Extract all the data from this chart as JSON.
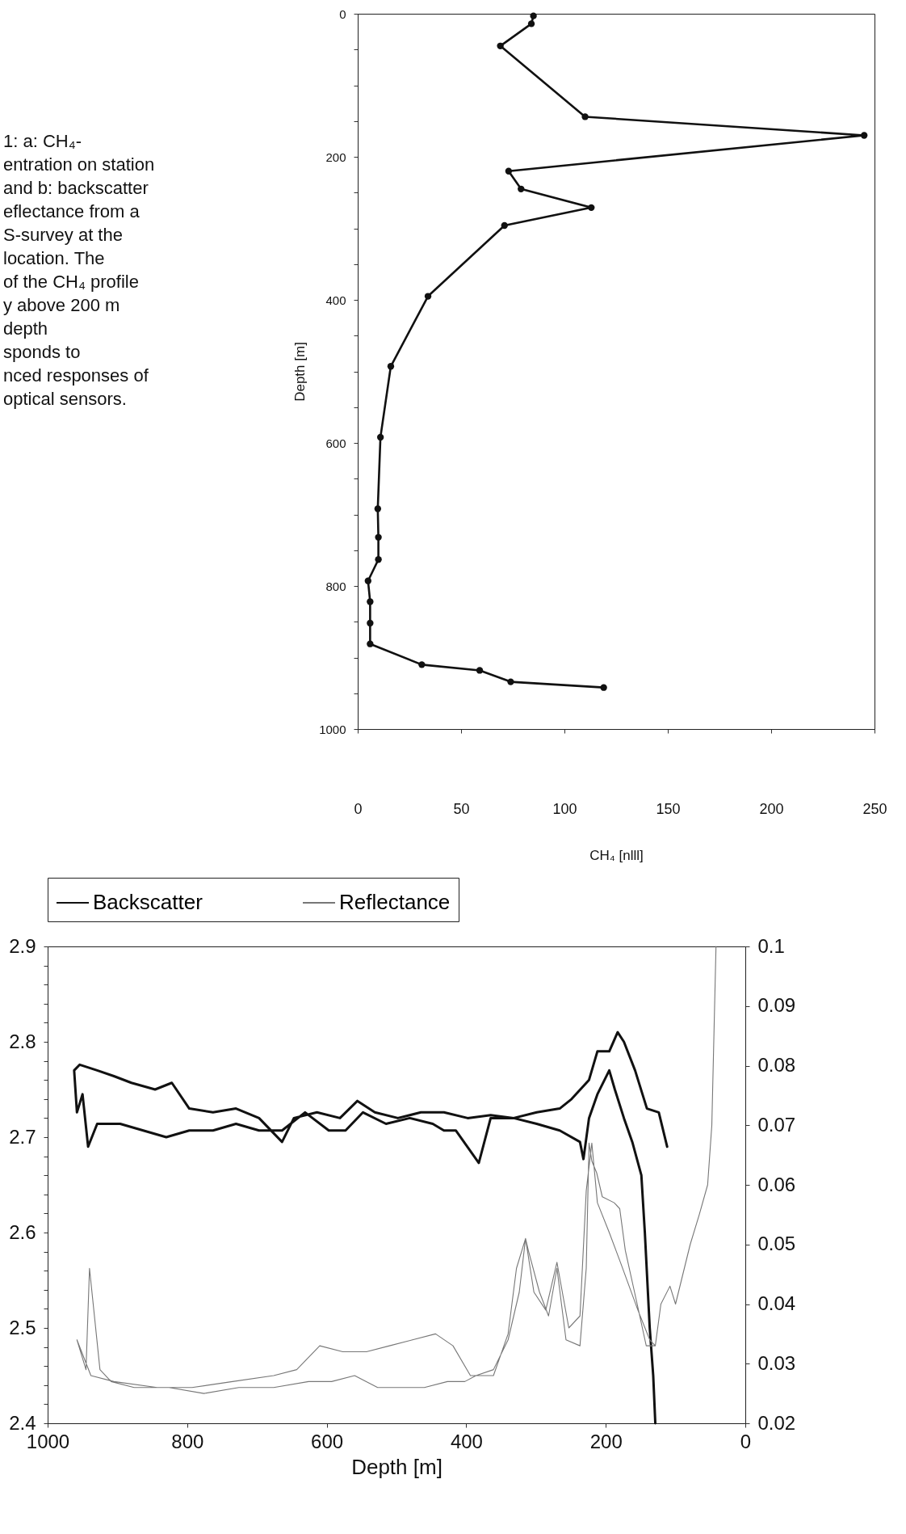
{
  "chart_data": [
    {
      "type": "line",
      "xlabel": "CH₄ [nlll]",
      "ylabel": "Depth [m]",
      "annotations": [
        "1: a: CH₄-",
        "entration on station",
        "and b: backscatter",
        "eflectance from a",
        "S-survey at the",
        "location. The",
        "of the CH₄ profile",
        "y above 200 m",
        "depth",
        "sponds to",
        "nced responses of",
        "optical sensors."
      ],
      "series": [
        {
          "color": "#111111",
          "x": [
            85,
            84,
            69,
            110,
            245,
            73,
            79,
            113,
            71,
            34,
            16,
            11,
            9.7,
            10,
            10,
            5,
            6,
            6,
            6,
            31,
            59,
            74,
            119
          ],
          "values": [
            3,
            14,
            45,
            144,
            170,
            220,
            245,
            271,
            296,
            395,
            493,
            592,
            692,
            732,
            763,
            793,
            822,
            852,
            881,
            910,
            918,
            934,
            942
          ]
        }
      ],
      "xlim": [
        0,
        250
      ],
      "xticks": [
        0,
        50,
        100,
        150,
        200,
        250
      ],
      "ylim": [
        1000,
        0
      ],
      "yticks": [
        0,
        {
          "value": 50,
          "label": null
        },
        {
          "value": 100,
          "label": null
        },
        {
          "value": 150,
          "label": null
        },
        200,
        {
          "value": 250,
          "label": null
        },
        {
          "value": 300,
          "label": null
        },
        {
          "value": 350,
          "label": null
        },
        400,
        {
          "value": 450,
          "label": null
        },
        {
          "value": 500,
          "label": null
        },
        {
          "value": 550,
          "label": null
        },
        600,
        {
          "value": 650,
          "label": null
        },
        {
          "value": 700,
          "label": null
        },
        {
          "value": 750,
          "label": null
        },
        800,
        {
          "value": 850,
          "label": null
        },
        {
          "value": 900,
          "label": null
        },
        {
          "value": 950,
          "label": null
        },
        1000
      ],
      "marker": "circle",
      "line_style": "solid",
      "grid": false,
      "legend": false
    },
    {
      "type": "line",
      "xlabel": "Depth [m]",
      "series": [
        {
          "name": "Backscatter",
          "color": "#111111",
          "x": [
            112,
            124,
            141,
            158,
            174,
            183,
            195,
            212,
            224,
            249,
            266,
            299,
            332,
            365,
            398,
            432,
            465,
            498,
            531,
            556,
            581,
            614,
            647,
            664,
            697,
            730,
            763,
            797,
            822,
            846,
            880,
            905,
            929,
            954,
            962,
            958,
            950,
            942,
            929,
            896,
            863,
            830,
            797,
            763,
            730,
            697,
            664,
            631,
            597,
            573,
            548,
            515,
            481,
            448,
            432,
            415,
            382,
            365,
            332,
            299,
            266,
            237,
            232,
            224,
            212,
            195,
            187,
            174,
            162,
            149,
            144,
            137,
            132,
            129
          ],
          "values": [
            2.69,
            2.726,
            2.73,
            2.77,
            2.8,
            2.81,
            2.79,
            2.79,
            2.76,
            2.74,
            2.73,
            2.726,
            2.72,
            2.723,
            2.72,
            2.726,
            2.726,
            2.72,
            2.726,
            2.738,
            2.72,
            2.726,
            2.72,
            2.695,
            2.72,
            2.73,
            2.726,
            2.73,
            2.757,
            2.75,
            2.757,
            2.764,
            2.77,
            2.776,
            2.77,
            2.726,
            2.745,
            2.69,
            2.714,
            2.714,
            2.707,
            2.7,
            2.707,
            2.707,
            2.714,
            2.707,
            2.707,
            2.726,
            2.707,
            2.707,
            2.726,
            2.714,
            2.72,
            2.714,
            2.707,
            2.707,
            2.673,
            2.72,
            2.72,
            2.714,
            2.707,
            2.695,
            2.677,
            2.72,
            2.745,
            2.77,
            2.75,
            2.72,
            2.695,
            2.66,
            2.6,
            2.5,
            2.45,
            2.4
          ]
        },
        {
          "name": "Reflectance",
          "color": "#777777",
          "axis": "y2",
          "x": [
            42,
            48,
            54,
            66,
            79,
            100,
            108,
            121,
            129,
            142,
            155,
            172,
            180,
            188,
            205,
            213,
            220,
            224,
            228,
            237,
            257,
            270,
            282,
            295,
            311,
            315,
            324,
            340,
            361,
            386,
            402,
            427,
            460,
            494,
            527,
            560,
            593,
            626,
            676,
            726,
            776,
            826,
            876,
            909,
            925,
            940,
            945,
            958,
            938,
            905,
            843,
            793,
            735,
            676,
            643,
            610,
            577,
            543,
            510,
            477,
            444,
            419,
            394,
            361,
            340,
            328,
            315,
            303,
            286,
            270,
            253,
            237,
            228,
            220,
            212,
            195,
            179,
            154,
            137,
            129
          ],
          "values": [
            0.1,
            0.07,
            0.06,
            0.055,
            0.05,
            0.04,
            0.043,
            0.04,
            0.033,
            0.033,
            0.04,
            0.049,
            0.056,
            0.057,
            0.058,
            0.062,
            0.064,
            0.067,
            0.046,
            0.033,
            0.034,
            0.046,
            0.038,
            0.042,
            0.049,
            0.051,
            0.042,
            0.034,
            0.029,
            0.028,
            0.027,
            0.027,
            0.026,
            0.026,
            0.026,
            0.028,
            0.027,
            0.027,
            0.026,
            0.026,
            0.025,
            0.026,
            0.026,
            0.027,
            0.029,
            0.046,
            0.029,
            0.034,
            0.028,
            0.027,
            0.026,
            0.026,
            0.027,
            0.028,
            0.029,
            0.033,
            0.032,
            0.032,
            0.033,
            0.034,
            0.035,
            0.033,
            0.028,
            0.028,
            0.035,
            0.046,
            0.051,
            0.042,
            0.039,
            0.047,
            0.036,
            0.038,
            0.059,
            0.067,
            0.057,
            0.052,
            0.047,
            0.039,
            0.034,
            0.033
          ]
        }
      ],
      "xlim": [
        1000,
        0
      ],
      "xticks": [
        1000,
        800,
        600,
        400,
        200,
        0
      ],
      "ylim": [
        2.4,
        2.9
      ],
      "yticks": [
        2.4,
        {
          "value": 2.42,
          "label": null
        },
        {
          "value": 2.44,
          "label": null
        },
        {
          "value": 2.46,
          "label": null
        },
        {
          "value": 2.48,
          "label": null
        },
        2.5,
        {
          "value": 2.52,
          "label": null
        },
        {
          "value": 2.54,
          "label": null
        },
        {
          "value": 2.56,
          "label": null
        },
        {
          "value": 2.58,
          "label": null
        },
        2.6,
        {
          "value": 2.62,
          "label": null
        },
        {
          "value": 2.64,
          "label": null
        },
        {
          "value": 2.66,
          "label": null
        },
        {
          "value": 2.68,
          "label": null
        },
        2.7,
        {
          "value": 2.72,
          "label": null
        },
        {
          "value": 2.74,
          "label": null
        },
        {
          "value": 2.76,
          "label": null
        },
        {
          "value": 2.78,
          "label": null
        },
        2.8,
        {
          "value": 2.82,
          "label": null
        },
        {
          "value": 2.84,
          "label": null
        },
        {
          "value": 2.86,
          "label": null
        },
        {
          "value": 2.88,
          "label": null
        },
        2.9
      ],
      "y2lim": [
        0.02,
        0.1
      ],
      "y2ticks": [
        0.02,
        0.03,
        0.04,
        0.05,
        0.06,
        0.07,
        0.08,
        0.09,
        0.1
      ],
      "line_style": "solid",
      "grid": false,
      "legend": "top"
    }
  ]
}
